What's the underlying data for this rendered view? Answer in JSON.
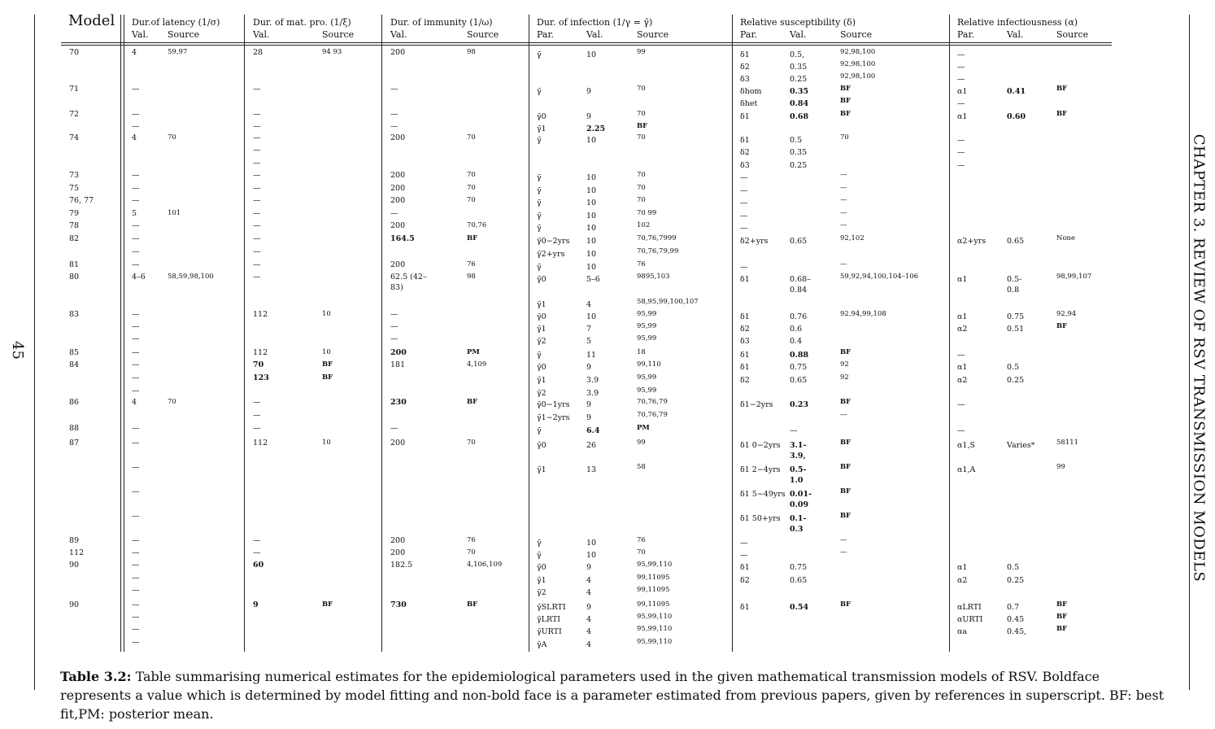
{
  "page_number": "45",
  "chapter_header": "CHAPTER 3.  REVIEW OF RSV TRANSMISSION MODELS",
  "table": {
    "headers": {
      "model": "Model",
      "latency": "Dur.of latency (1/σ)",
      "mat_pro": "Dur. of mat. pro. (1/ξ)",
      "immunity": "Dur. of immunity (1/ω)",
      "infection": "Dur. of infection (1/γ = γ̄)",
      "susceptibility": "Relative susceptibility (δ)",
      "infectiousness": "Relative infectiousness (α)"
    },
    "subheaders": {
      "val": "Val.",
      "source": "Source",
      "par": "Par."
    },
    "rows": [
      {
        "y": 60,
        "model": "70",
        "lat": "4",
        "latS": "59,97",
        "mat": "28",
        "matS": "94 93",
        "imm": "200",
        "immS": "98",
        "gp": "γ̄",
        "gv": "10",
        "gs": "99",
        "dp": "δ1",
        "dv": "0.5,",
        "ds": "92,98,100",
        "ap": "—"
      },
      {
        "y": 75,
        "dp": "δ2",
        "dv": "0.35",
        "ds": "92,98,100",
        "ap": "—"
      },
      {
        "y": 90,
        "dp": "δ3",
        "dv": "0.25",
        "ds": "92,98,100",
        "ap": "—"
      },
      {
        "y": 105,
        "model": "71",
        "lat": "—",
        "mat": "—",
        "imm": "—",
        "gp": "γ̄",
        "gv": "9",
        "gs": "70",
        "dp": "δhom",
        "dv": "0.35",
        "dvb": 1,
        "ds": "BF",
        "dsb": 1,
        "ap": "α1",
        "av": "0.41",
        "avb": 1,
        "as": "BF",
        "asb": 1
      },
      {
        "y": 120,
        "dp": "δhet",
        "dv": "0.84",
        "dvb": 1,
        "ds": "BF",
        "dsb": 1,
        "ap": "—"
      },
      {
        "y": 136,
        "model": "72",
        "lat": "—",
        "mat": "—",
        "imm": "—",
        "gp": "γ̄0",
        "gv": "9",
        "gs": "70",
        "dp": "δ1",
        "dv": "0.68",
        "dvb": 1,
        "ds": "BF",
        "dsb": 1,
        "ap": "α1",
        "av": "0.60",
        "avb": 1,
        "as": "BF",
        "asb": 1
      },
      {
        "y": 151,
        "lat": "—",
        "mat": "—",
        "imm": "—",
        "gp": "γ̄1",
        "gv": "2.25",
        "gvb": 1,
        "gs": "BF",
        "gsb": 1
      },
      {
        "y": 165,
        "model": "74",
        "lat": "4",
        "latS": "70",
        "mat": "—",
        "imm": "200",
        "immS": "70",
        "gp": "γ̄",
        "gv": "10",
        "gs": "70",
        "dp": "δ1",
        "dv": "0.5",
        "ds": "70",
        "ap": "—"
      },
      {
        "y": 180,
        "mat": "—",
        "dp": "δ2",
        "dv": "0.35",
        "ap": "—"
      },
      {
        "y": 196,
        "mat": "—",
        "dp": "δ3",
        "dv": "0.25",
        "ap": "—"
      },
      {
        "y": 211,
        "model": "73",
        "lat": "—",
        "mat": "—",
        "imm": "200",
        "immS": "70",
        "gp": "γ̄",
        "gv": "10",
        "gs": "70",
        "dp": "—",
        "ds": "—"
      },
      {
        "y": 227,
        "model": "75",
        "lat": "—",
        "mat": "—",
        "imm": "200",
        "immS": "70",
        "gp": "γ̄",
        "gv": "10",
        "gs": "70",
        "dp": "—",
        "ds": "—"
      },
      {
        "y": 242,
        "model": "76, 77",
        "lat": "—",
        "mat": "—",
        "imm": "200",
        "immS": "70",
        "gp": "γ̄",
        "gv": "10",
        "gs": "70",
        "dp": "—",
        "ds": "—"
      },
      {
        "y": 258,
        "model": "79",
        "lat": "5",
        "latS": "101",
        "mat": "—",
        "imm": "—",
        "gp": "γ̄",
        "gv": "10",
        "gs": "70 99",
        "dp": "—",
        "ds": "—"
      },
      {
        "y": 273,
        "model": "78",
        "lat": "—",
        "mat": "—",
        "imm": "200",
        "immS": "70,76",
        "gp": "γ̄",
        "gv": "10",
        "gs": "102",
        "dp": "—",
        "ds": "—"
      },
      {
        "y": 289,
        "model": "82",
        "lat": "—",
        "mat": "—",
        "imm": "164.5",
        "immb": 1,
        "immS": "BF",
        "immSb": 1,
        "gp": "γ̄0−2yrs",
        "gv": "10",
        "gs": "70,76,7999",
        "dp": "δ2+yrs",
        "dv": "0.65",
        "ds": "92,102",
        "ap": "α2+yrs",
        "av": "0.65",
        "as": "None"
      },
      {
        "y": 305,
        "lat": "—",
        "mat": "—",
        "gp": "γ̄2+yrs",
        "gv": "10",
        "gs": "70,76,79,99"
      },
      {
        "y": 321,
        "model": "81",
        "lat": "—",
        "mat": "—",
        "imm": "200",
        "immS": "76",
        "gp": "γ̄",
        "gv": "10",
        "gs": "76",
        "dp": "—",
        "ds": "—"
      },
      {
        "y": 336,
        "model": "80",
        "lat": "4–6",
        "latS": "58,59,98,100",
        "mat": "—",
        "imm": "62.5     (42–",
        "imm2": "83)",
        "immS": "98",
        "gp": "γ̄0",
        "gv": "5–6",
        "gs": "9895,103",
        "dp": "δ1",
        "dv": "0.68–",
        "dv2": "0.84",
        "ds": "59,92,94,100,104–106",
        "ap": "α1",
        "av": "0.5-",
        "av2": "0.8",
        "as": "98,99,107"
      },
      {
        "y": 367,
        "gp": "γ̄1",
        "gv": "4",
        "gs": "58,95,99,100,107"
      },
      {
        "y": 382,
        "model": "83",
        "lat": "—",
        "mat": "112",
        "matS": "10",
        "imm": "—",
        "gp": "γ̄0",
        "gv": "10",
        "gs": "95,99",
        "dp": "δ1",
        "dv": "0.76",
        "ds": "92,94,99,108",
        "ap": "α1",
        "av": "0.75",
        "as": "92,94"
      },
      {
        "y": 397,
        "lat": "—",
        "imm": "—",
        "gp": "γ̄1",
        "gv": "7",
        "gs": "95,99",
        "dp": "δ2",
        "dv": "0.6",
        "ap": "α2",
        "av": "0.51",
        "as": "BF",
        "asb": 1
      },
      {
        "y": 412,
        "lat": "—",
        "imm": "—",
        "gp": "γ̄2",
        "gv": "5",
        "gs": "95,99",
        "dp": "δ3",
        "dv": "0.4"
      },
      {
        "y": 429,
        "model": "85",
        "lat": "—",
        "mat": "112",
        "matS": "10",
        "imm": "200",
        "immb": 1,
        "immS": "PM",
        "immSb": 1,
        "gp": "γ̄",
        "gv": "11",
        "gs": "18",
        "dp": "δ1",
        "dv": "0.88",
        "dvb": 1,
        "ds": "BF",
        "dsb": 1,
        "ap": "—"
      },
      {
        "y": 444,
        "model": "84",
        "lat": "—",
        "mat": "70",
        "matb": 1,
        "matS": "BF",
        "matSb": 1,
        "imm": "181",
        "immS": "4,109",
        "gp": "γ̄0",
        "gv": "9",
        "gs": "99,110",
        "dp": "δ1",
        "dv": "0.75",
        "ds": "92",
        "ap": "α1",
        "av": "0.5"
      },
      {
        "y": 460,
        "lat": "—",
        "mat": "123",
        "matb": 1,
        "matS": "BF",
        "matSb": 1,
        "gp": "γ̄1",
        "gv": "3.9",
        "gs": "95,99",
        "dp": "δ2",
        "dv": "0.65",
        "ds": "92",
        "ap": "α2",
        "av": "0.25"
      },
      {
        "y": 476,
        "lat": "—",
        "gp": "γ̄2",
        "gv": "3.9",
        "gs": "95,99"
      },
      {
        "y": 490,
        "model": "86",
        "lat": "4",
        "latS": "70",
        "mat": "—",
        "imm": "230",
        "immb": 1,
        "immS": "BF",
        "immSb": 1,
        "gp": "γ̄0−1yrs",
        "gv": "9",
        "gs": "70,76,79",
        "dp": "δ1−2yrs",
        "dv": "0.23",
        "dvb": 1,
        "ds": "BF",
        "dsb": 1,
        "ap": "—"
      },
      {
        "y": 506,
        "mat": "—",
        "gp": "γ̄1−2yrs",
        "gv": "9",
        "gs": "70,76,79",
        "ds": "—"
      },
      {
        "y": 522,
        "model": "88",
        "lat": "—",
        "mat": "—",
        "imm": "—",
        "gp": "γ̄",
        "gv": "6.4",
        "gvb": 1,
        "gs": "PM",
        "gsb": 1,
        "dv": "—",
        "ap": "—"
      },
      {
        "y": 540,
        "model": "87",
        "lat": "—",
        "mat": "112",
        "matS": "10",
        "imm": "200",
        "immS": "70",
        "gp": "γ̄0",
        "gv": "26",
        "gs": "99",
        "dp": "δ1 0−2yrs",
        "dv": "3.1-",
        "dvb": 1,
        "dv2": "3.9,",
        "ds": "BF",
        "dsb": 1,
        "ap": "α1,S",
        "av": "Varies*",
        "as": "58111"
      },
      {
        "y": 570,
        "lat": "—",
        "gp": "γ̄1",
        "gv": "13",
        "gs": "58",
        "dp": "δ1 2−4yrs",
        "dv": "0.5-",
        "dvb": 1,
        "dv2": "1.0",
        "ds": "BF",
        "dsb": 1,
        "ap": "α1,A",
        "as": "99"
      },
      {
        "y": 600,
        "lat": "—",
        "dp": "δ1 5−49yrs",
        "dv": "0.01-",
        "dvb": 1,
        "dv2": "0.09",
        "ds": "BF",
        "dsb": 1
      },
      {
        "y": 630,
        "lat": "—",
        "dp": "δ1 50+yrs",
        "dv": "0.1-",
        "dvb": 1,
        "dv2": "0.3",
        "ds": "BF",
        "dsb": 1
      },
      {
        "y": 660,
        "model": "89",
        "lat": "—",
        "mat": "—",
        "imm": "200",
        "immS": "76",
        "gp": "γ̄",
        "gv": "10",
        "gs": "76",
        "dp": "—",
        "ds": "—"
      },
      {
        "y": 675,
        "model": "112",
        "lat": "—",
        "mat": "—",
        "imm": "200",
        "immS": "70",
        "gp": "γ̄",
        "gv": "10",
        "gs": "70",
        "dp": "—",
        "ds": "—"
      },
      {
        "y": 690,
        "model": "90",
        "lat": "—",
        "mat": "60",
        "matb": 1,
        "imm": "182.5",
        "immS": "4,106,109",
        "gp": "γ̄0",
        "gv": "9",
        "gs": "95,99,110",
        "dp": "δ1",
        "dv": "0.75",
        "ap": "α1",
        "av": "0.5"
      },
      {
        "y": 706,
        "lat": "—",
        "gp": "γ̄1",
        "gv": "4",
        "gs": "99,11095",
        "dp": "δ2",
        "dv": "0.65",
        "ap": "α2",
        "av": "0.25"
      },
      {
        "y": 721,
        "lat": "—",
        "gp": "γ̄2",
        "gv": "4",
        "gs": "99,11095"
      },
      {
        "y": 739,
        "model": "90",
        "lat": "—",
        "mat": "9",
        "matb": 1,
        "matS": "BF",
        "matSb": 1,
        "imm": "730",
        "immb": 1,
        "immS": "BF",
        "immSb": 1,
        "gp": "γ̄SLRTI",
        "gv": "9",
        "gs": "99,11095",
        "dp": "δ1",
        "dv": "0.54",
        "dvb": 1,
        "ds": "BF",
        "dsb": 1,
        "ap": "αLRTI",
        "av": "0.7",
        "as": "BF",
        "asb": 1
      },
      {
        "y": 754,
        "lat": "—",
        "gp": "γ̄LRTI",
        "gv": "4",
        "gs": "95,99,110",
        "ap": "αURTI",
        "av": "0.45",
        "as": "BF",
        "asb": 1
      },
      {
        "y": 769,
        "lat": "—",
        "gp": "γ̄URTI",
        "gv": "4",
        "gs": "95,99,110",
        "ap": "αa",
        "av": "0.45,",
        "as": "BF",
        "asb": 1
      },
      {
        "y": 785,
        "lat": "—",
        "gp": "γ̄A",
        "gv": "4",
        "gs": "95,99,110"
      }
    ]
  },
  "caption": {
    "label": "Table 3.2:",
    "text": " Table summarising numerical estimates for the epidemiological parameters used in the given mathematical transmission models of RSV. Boldface represents a value which is determined by model fitting and non-bold face is a parameter estimated from previous papers, given by references in superscript. BF: best fit,PM: posterior mean."
  }
}
